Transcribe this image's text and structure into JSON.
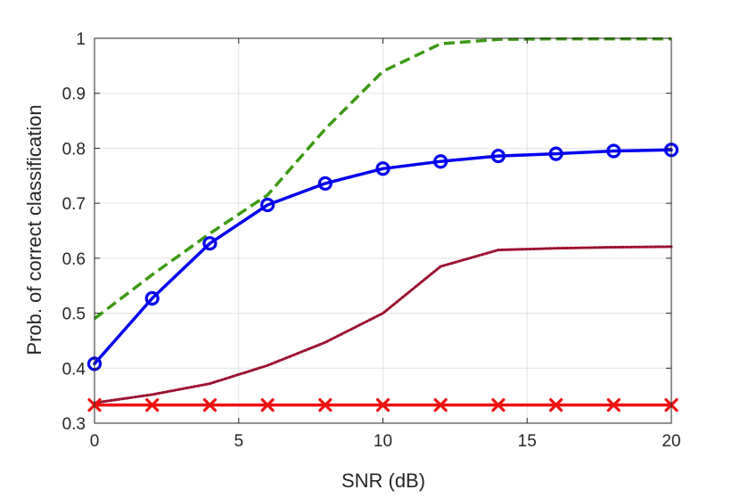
{
  "chart_data": {
    "type": "line",
    "xlabel": "SNR (dB)",
    "ylabel": "Prob. of correct classification",
    "xlim": [
      0,
      20
    ],
    "ylim": [
      0.3,
      1
    ],
    "xticks": [
      "0",
      "5",
      "10",
      "15",
      "20"
    ],
    "yticks": [
      "0.3",
      "0.4",
      "0.5",
      "0.6",
      "0.7",
      "0.8",
      "0.9",
      "1"
    ],
    "grid": true,
    "series": [
      {
        "color": "#3a9a12",
        "line_style": "dashed",
        "marker": "none",
        "x": [
          0,
          2,
          4,
          6,
          8,
          10,
          12,
          14,
          16,
          18,
          20
        ],
        "y": [
          0.49,
          0.57,
          0.645,
          0.715,
          0.835,
          0.94,
          0.99,
          0.998,
          0.999,
          0.999,
          0.999
        ]
      },
      {
        "color": "#0000ee",
        "line_style": "solid",
        "marker": "circle",
        "x": [
          0,
          2,
          4,
          6,
          8,
          10,
          12,
          14,
          16,
          18,
          20
        ],
        "y": [
          0.408,
          0.527,
          0.627,
          0.697,
          0.736,
          0.763,
          0.776,
          0.786,
          0.79,
          0.795,
          0.797
        ]
      },
      {
        "color": "#9c1230",
        "line_style": "dotted",
        "marker": "none",
        "x": [
          0,
          2,
          4,
          6,
          8,
          10,
          12,
          14,
          16,
          18,
          20
        ],
        "y": [
          0.337,
          0.352,
          0.372,
          0.405,
          0.447,
          0.5,
          0.585,
          0.615,
          0.618,
          0.62,
          0.621
        ]
      },
      {
        "color": "#ee1111",
        "line_style": "solid",
        "marker": "x",
        "x": [
          0,
          2,
          4,
          6,
          8,
          10,
          12,
          14,
          16,
          18,
          20
        ],
        "y": [
          0.333,
          0.333,
          0.333,
          0.333,
          0.333,
          0.333,
          0.333,
          0.333,
          0.333,
          0.333,
          0.333
        ]
      }
    ]
  }
}
